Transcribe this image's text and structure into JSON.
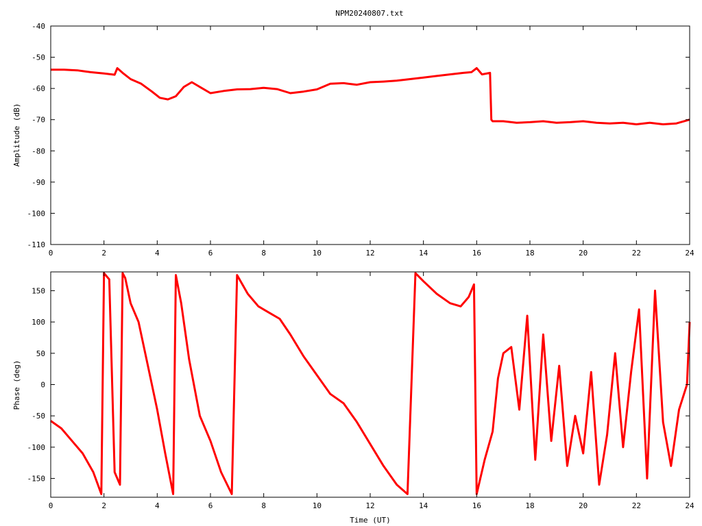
{
  "title": "NPM20240807.txt",
  "colors": {
    "trace": "#ff0000",
    "axes": "#000000",
    "background": "#ffffff"
  },
  "chart_data": [
    {
      "type": "line",
      "title": "NPM20240807.txt",
      "xlabel": "",
      "ylabel": "Amplitude (dB)",
      "xlim": [
        0,
        24
      ],
      "ylim": [
        -110,
        -40
      ],
      "xticks": [
        "0",
        "2",
        "4",
        "6",
        "8",
        "10",
        "12",
        "14",
        "16",
        "18",
        "20",
        "22",
        "24"
      ],
      "yticks": [
        "-40",
        "-50",
        "-60",
        "-70",
        "-80",
        "-90",
        "-100",
        "-110"
      ],
      "grid": false,
      "series": [
        {
          "x": [
            0,
            0.5,
            1.0,
            1.5,
            2.0,
            2.4,
            2.5,
            2.7,
            3.0,
            3.4,
            3.8,
            4.1,
            4.4,
            4.7,
            5.0,
            5.3,
            5.6,
            6.0,
            6.5,
            7.0,
            7.5,
            8.0,
            8.5,
            9.0,
            9.5,
            10.0,
            10.5,
            11.0,
            11.5,
            12.0,
            12.5,
            13.0,
            13.5,
            14.0,
            14.5,
            15.0,
            15.5,
            15.8,
            16.0,
            16.2,
            16.5,
            16.55,
            16.6,
            17.0,
            17.5,
            18.0,
            18.5,
            19.0,
            19.5,
            20.0,
            20.5,
            21.0,
            21.5,
            22.0,
            22.5,
            23.0,
            23.5,
            24.0
          ],
          "y": [
            -54,
            -54,
            -54.2,
            -54.8,
            -55.2,
            -55.6,
            -53.5,
            -55,
            -57,
            -58.5,
            -61,
            -63,
            -63.5,
            -62.5,
            -59.5,
            -58,
            -59.5,
            -61.5,
            -60.8,
            -60.3,
            -60.2,
            -59.8,
            -60.2,
            -61.5,
            -61,
            -60.3,
            -58.5,
            -58.3,
            -58.8,
            -58,
            -57.8,
            -57.5,
            -57,
            -56.5,
            -56,
            -55.5,
            -55,
            -54.8,
            -53.5,
            -55.5,
            -55,
            -70,
            -70.5,
            -70.5,
            -71,
            -70.8,
            -70.5,
            -71,
            -70.8,
            -70.5,
            -71,
            -71.2,
            -71,
            -71.5,
            -71,
            -71.5,
            -71.2,
            -70
          ]
        }
      ]
    },
    {
      "type": "line",
      "title": "",
      "xlabel": "Time (UT)",
      "ylabel": "Phase (deg)",
      "xlim": [
        0,
        24
      ],
      "ylim": [
        -180,
        180
      ],
      "xticks": [
        "0",
        "2",
        "4",
        "6",
        "8",
        "10",
        "12",
        "14",
        "16",
        "18",
        "20",
        "22",
        "24"
      ],
      "yticks": [
        "150",
        "100",
        "50",
        "0",
        "-50",
        "-100",
        "-150"
      ],
      "grid": false,
      "series": [
        {
          "x": [
            0,
            0.4,
            0.8,
            1.2,
            1.6,
            1.9,
            2.0,
            2.2,
            2.4,
            2.6,
            2.7,
            2.8,
            3.0,
            3.3,
            3.6,
            4.0,
            4.3,
            4.6,
            4.7,
            4.9,
            5.2,
            5.6,
            6.0,
            6.4,
            6.8,
            7.0,
            7.4,
            7.8,
            8.2,
            8.6,
            9.0,
            9.5,
            10.0,
            10.5,
            11.0,
            11.5,
            12.0,
            12.5,
            13.0,
            13.4,
            13.7,
            14.0,
            14.5,
            15.0,
            15.4,
            15.7,
            15.9,
            16.0,
            16.3,
            16.6,
            16.8,
            17.0,
            17.3,
            17.6,
            17.9,
            18.2,
            18.5,
            18.8,
            19.1,
            19.4,
            19.7,
            20.0,
            20.3,
            20.6,
            20.9,
            21.2,
            21.5,
            21.8,
            22.1,
            22.4,
            22.7,
            23.0,
            23.3,
            23.6,
            23.9,
            24.0
          ],
          "y": [
            -58,
            -70,
            -90,
            -110,
            -140,
            -175,
            178,
            168,
            -140,
            -160,
            178,
            170,
            130,
            100,
            40,
            -40,
            -110,
            -175,
            175,
            130,
            40,
            -50,
            -90,
            -140,
            -175,
            175,
            145,
            125,
            115,
            105,
            80,
            45,
            15,
            -15,
            -30,
            -60,
            -95,
            -130,
            -160,
            -175,
            178,
            165,
            145,
            130,
            125,
            140,
            160,
            -175,
            -120,
            -75,
            10,
            50,
            60,
            -40,
            110,
            -120,
            80,
            -90,
            30,
            -130,
            -50,
            -110,
            20,
            -160,
            -80,
            50,
            -100,
            20,
            120,
            -150,
            150,
            -60,
            -130,
            -40,
            0,
            100
          ]
        }
      ]
    }
  ]
}
